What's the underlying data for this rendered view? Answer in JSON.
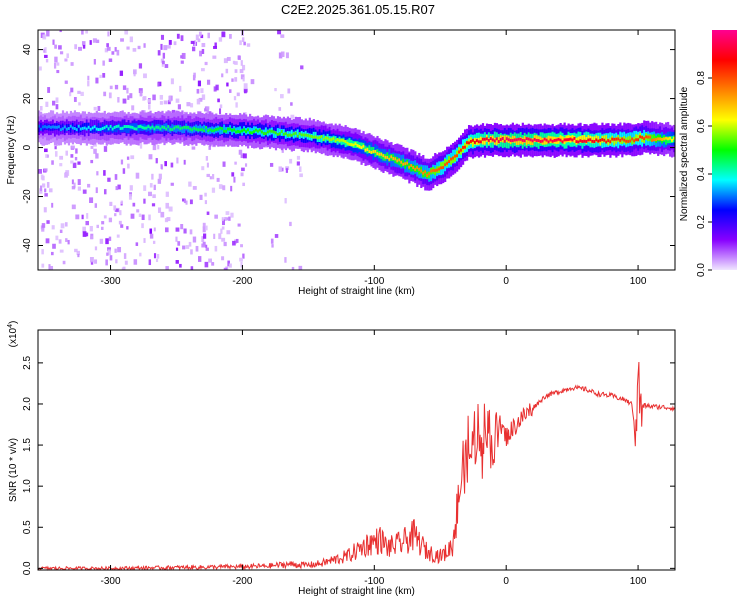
{
  "title": "C2E2.2025.361.05.15.R07",
  "chart_data": [
    {
      "type": "heatmap",
      "name": "spectrogram",
      "xlabel": "Height of straight line (km)",
      "ylabel": "Frequency (Hz)",
      "xlim": [
        -355,
        128
      ],
      "ylim": [
        -50,
        48
      ],
      "x_ticks": [
        -300,
        -200,
        -100,
        0,
        100
      ],
      "x_tick_labels": [
        "-300",
        "-200",
        "-100",
        "0",
        "100"
      ],
      "y_ticks": [
        -40,
        -20,
        0,
        20,
        40
      ],
      "y_tick_labels": [
        "-40",
        "-20",
        "0",
        "20",
        "40"
      ],
      "colorbar": {
        "label": "Normalized spectral amplitude",
        "range": [
          0.0,
          1.0
        ],
        "ticks": [
          0.0,
          0.2,
          0.4,
          0.6,
          0.8
        ],
        "tick_labels": [
          "0.0",
          "0.2",
          "0.4",
          "0.6",
          "0.8"
        ],
        "colors": [
          "#f0e6ff",
          "#8800ff",
          "#0000ff",
          "#00ffff",
          "#00ff00",
          "#ffff00",
          "#ff8000",
          "#ff0000",
          "#ff0090"
        ]
      },
      "ridge_x": [
        -355,
        -300,
        -250,
        -200,
        -150,
        -120,
        -100,
        -80,
        -60,
        -50,
        -40,
        -30,
        -20,
        0,
        20,
        60,
        95,
        100,
        128
      ],
      "ridge_freq": [
        8,
        8,
        8,
        7,
        5,
        2,
        -2,
        -6,
        -11,
        -8,
        -4,
        2,
        3,
        3,
        3,
        3,
        3,
        4,
        3
      ],
      "ridge_amplitude": [
        0.3,
        0.4,
        0.45,
        0.5,
        0.55,
        0.6,
        0.65,
        0.7,
        0.75,
        0.8,
        0.8,
        0.85,
        0.9,
        0.95,
        0.95,
        0.9,
        0.8,
        0.85,
        0.6
      ]
    },
    {
      "type": "line",
      "name": "snr",
      "xlabel": "Height of straight line (km)",
      "ylabel": "SNR (10 * v/v)",
      "y_scale_label": "(x10",
      "y_scale_exponent": "4",
      "y_scale_suffix": ")",
      "xlim": [
        -355,
        128
      ],
      "ylim": [
        -0.02,
        2.9
      ],
      "x_ticks": [
        -300,
        -200,
        -100,
        0,
        100
      ],
      "x_tick_labels": [
        "-300",
        "-200",
        "-100",
        "0",
        "100"
      ],
      "y_ticks": [
        0.0,
        0.5,
        1.0,
        1.5,
        2.0,
        2.5
      ],
      "y_tick_labels": [
        "0.0",
        "0.5",
        "1.0",
        "1.5",
        "2.0",
        "2.5"
      ],
      "line_color": "#e83030",
      "series": [
        {
          "name": "SNR",
          "x": [
            -355,
            -300,
            -250,
            -200,
            -180,
            -165,
            -150,
            -140,
            -120,
            -105,
            -95,
            -90,
            -80,
            -70,
            -60,
            -50,
            -45,
            -40,
            -35,
            -30,
            -25,
            -20,
            -15,
            -12,
            -10,
            -5,
            0,
            10,
            20,
            30,
            40,
            50,
            60,
            70,
            80,
            90,
            95,
            98,
            100,
            102,
            105,
            110,
            120,
            128
          ],
          "y": [
            0.0,
            0.0,
            0.01,
            0.02,
            0.03,
            0.05,
            0.04,
            0.06,
            0.15,
            0.3,
            0.35,
            0.25,
            0.3,
            0.4,
            0.2,
            0.15,
            0.2,
            0.3,
            1.0,
            1.3,
            1.5,
            1.6,
            1.8,
            1.5,
            1.5,
            1.75,
            1.6,
            1.8,
            1.95,
            2.1,
            2.15,
            2.2,
            2.18,
            2.12,
            2.1,
            2.05,
            2.0,
            1.7,
            2.5,
            1.95,
            1.98,
            1.97,
            1.96,
            1.95
          ]
        }
      ]
    }
  ]
}
